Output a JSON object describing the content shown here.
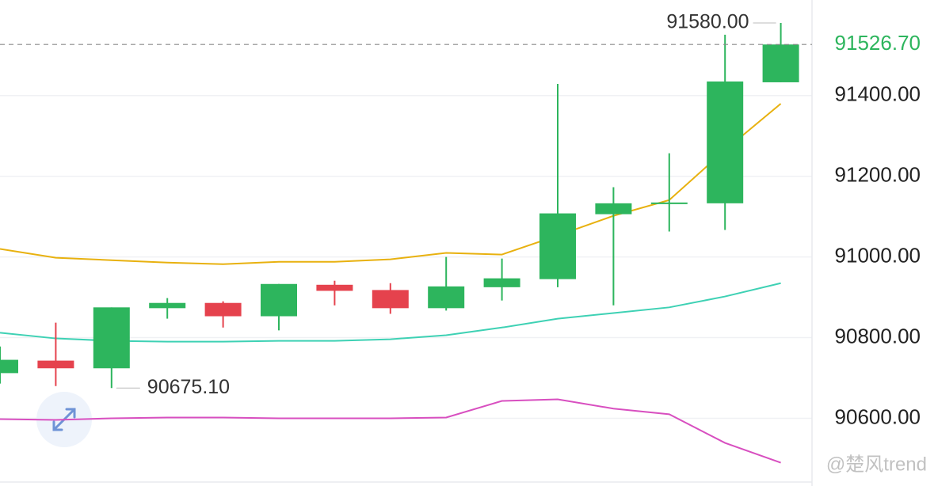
{
  "chart_data": {
    "type": "candlestick",
    "ylim": [
      90440,
      91637
    ],
    "yticks": [
      {
        "value": 90600,
        "label": "90600.00"
      },
      {
        "value": 90800,
        "label": "90800.00"
      },
      {
        "value": 91000,
        "label": "91000.00"
      },
      {
        "value": 91200,
        "label": "91200.00"
      },
      {
        "value": 91400,
        "label": "91400.00"
      }
    ],
    "grid": true,
    "up_color": "#2db55d",
    "down_color": "#e5424d",
    "candles": [
      {
        "open": 90712,
        "high": 90778,
        "low": 90686,
        "close": 90745
      },
      {
        "open": 90743,
        "high": 90837,
        "low": 90680,
        "close": 90724
      },
      {
        "open": 90724,
        "high": 90875,
        "low": 90675.1,
        "close": 90875
      },
      {
        "open": 90873,
        "high": 90898,
        "low": 90847,
        "close": 90886
      },
      {
        "open": 90886,
        "high": 90890,
        "low": 90825,
        "close": 90853
      },
      {
        "open": 90853,
        "high": 90933,
        "low": 90818,
        "close": 90933
      },
      {
        "open": 90931,
        "high": 90941,
        "low": 90880,
        "close": 90916
      },
      {
        "open": 90918,
        "high": 90935,
        "low": 90859,
        "close": 90873
      },
      {
        "open": 90873,
        "high": 91000,
        "low": 90867,
        "close": 90927
      },
      {
        "open": 90925,
        "high": 90996,
        "low": 90892,
        "close": 90947
      },
      {
        "open": 90945,
        "high": 91429,
        "low": 90925,
        "close": 91108
      },
      {
        "open": 91106,
        "high": 91173,
        "low": 90880,
        "close": 91133
      },
      {
        "open": 91131,
        "high": 91257,
        "low": 91063,
        "close": 91135
      },
      {
        "open": 91133,
        "high": 91551,
        "low": 91067,
        "close": 91435
      },
      {
        "open": 91433,
        "high": 91580,
        "low": 91433,
        "close": 91526.7
      }
    ],
    "series": [
      {
        "color": "#e8b10f",
        "values": [
          91020,
          90998,
          90992,
          90986,
          90982,
          90988,
          90988,
          90994,
          91010,
          91006,
          91053,
          91102,
          91141,
          91265,
          91380
        ]
      },
      {
        "color": "#3ed1b4",
        "values": [
          90812,
          90798,
          90792,
          90790,
          90790,
          90792,
          90792,
          90796,
          90806,
          90825,
          90847,
          90861,
          90875,
          90902,
          90935
        ]
      },
      {
        "color": "#d84fc0",
        "values": [
          90598,
          90596,
          90600,
          90602,
          90602,
          90600,
          90600,
          90600,
          90602,
          90643,
          90647,
          90624,
          90610,
          90539,
          90490
        ]
      }
    ],
    "last_price": {
      "value": 91526.7,
      "label": "91526.70"
    },
    "high_marker": {
      "value": 91580,
      "label": "91580.00"
    },
    "low_marker": {
      "value": 90675.1,
      "label": "90675.10"
    },
    "watermark": "@楚风trend"
  }
}
